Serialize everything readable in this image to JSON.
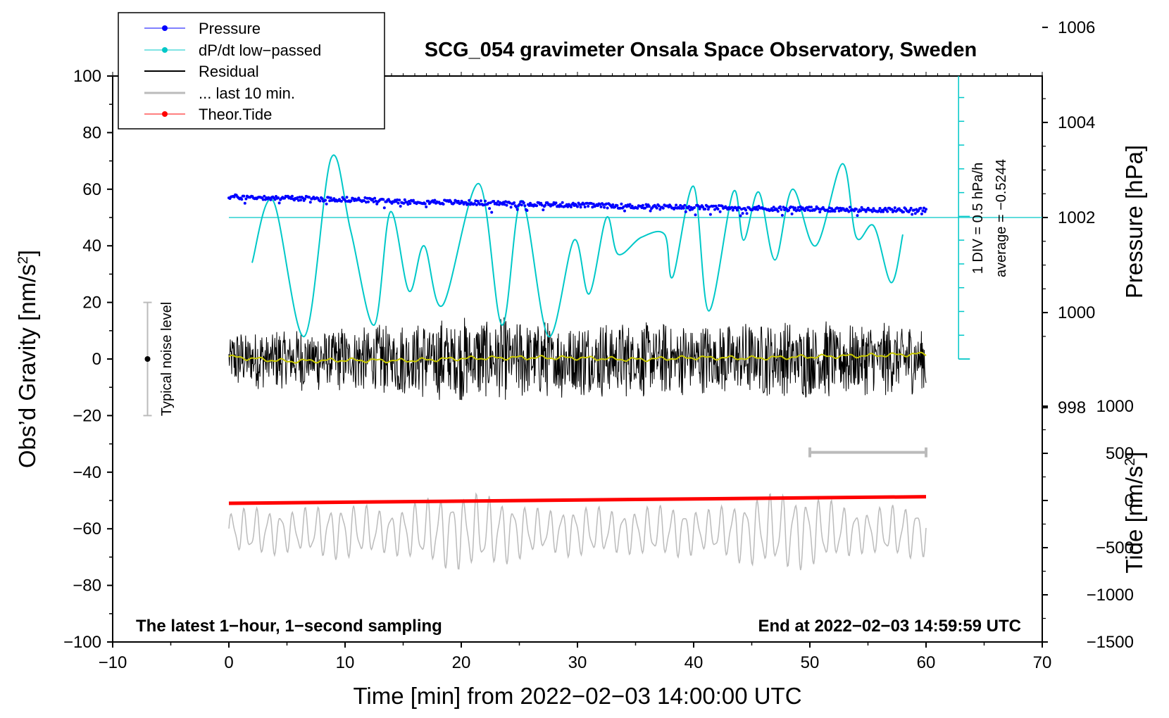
{
  "chart_data": {
    "type": "line",
    "title": "SCG_054 gravimeter Onsala Space Observatory, Sweden",
    "xlabel": "Time [min] from 2022−02−03 14:00:00 UTC",
    "ylabel_left": "Obs’d Gravity [nm/s²]",
    "ylabel_left_main": "Obs’d Gravity [nm/s",
    "ylabel_left_sup": "2",
    "ylabel_left_end": "]",
    "ylabel_right_pressure": "Pressure [hPa]",
    "ylabel_right_tide": "Tide [nm/s²]",
    "ylabel_right_tide_main": "Tide [nm/s",
    "ylabel_right_tide_sup": "2",
    "ylabel_right_tide_end": "]",
    "xlim": [
      -10,
      70
    ],
    "ylim_left": [
      -100,
      100
    ],
    "x_ticks": [
      -10,
      0,
      10,
      20,
      30,
      40,
      50,
      60,
      70
    ],
    "x_tick_labels": [
      "−10",
      "0",
      "10",
      "20",
      "30",
      "40",
      "50",
      "60",
      "70"
    ],
    "y_ticks_left": [
      -100,
      -80,
      -60,
      -40,
      -20,
      0,
      20,
      40,
      60,
      80,
      100
    ],
    "y_tick_labels_left": [
      "−100",
      "−80",
      "−60",
      "−40",
      "−20",
      "0",
      "20",
      "40",
      "60",
      "80",
      "100"
    ],
    "pressure_axis": {
      "ticks": [
        998,
        1000,
        1002,
        1004,
        1006
      ],
      "tick_labels": [
        "998",
        "1000",
        "1002",
        "1004",
        "1006"
      ],
      "map_gravity_at_1002": 50,
      "nm_per_hpa": 16.8
    },
    "tide_axis": {
      "ticks": [
        -1500,
        -1000,
        -500,
        0,
        500,
        1000
      ],
      "tick_labels": [
        "−1500",
        "−1000",
        "−500",
        "0",
        "500",
        "1000"
      ],
      "map_gravity_at_0": -50,
      "nm_per_unit": 0.033333
    },
    "legend": [
      {
        "label": "Pressure",
        "color": "#0000ff",
        "marker": "dot"
      },
      {
        "label": "dP/dt low−passed",
        "color": "#00c8c8",
        "marker": "dot"
      },
      {
        "label": "Residual",
        "color": "#000000",
        "marker": "none"
      },
      {
        "label": "... last 10 min.",
        "color": "#bbbbbb",
        "marker": "none"
      },
      {
        "label": "Theor.Tide",
        "color": "#ff0000",
        "marker": "dot"
      }
    ],
    "series": [
      {
        "name": "Pressure",
        "unit": "gravity-axis units",
        "color": "#0000ff",
        "x": [
          0,
          5,
          10,
          15,
          20,
          25,
          30,
          35,
          40,
          45,
          50,
          55,
          60
        ],
        "y": [
          57.3,
          56.9,
          56.4,
          55.8,
          55.3,
          54.9,
          54.4,
          53.9,
          53.6,
          53.3,
          53.0,
          52.8,
          52.6
        ]
      },
      {
        "name": "dP/dt low−passed",
        "unit": "gravity-axis units",
        "color": "#00c8c8",
        "x": [
          2,
          3.8,
          6.5,
          8.8,
          10.5,
          12.5,
          13.9,
          15.5,
          16.8,
          18.4,
          21.5,
          23.5,
          25.2,
          27.5,
          29.7,
          31,
          32.5,
          33.5,
          35.5,
          37.5,
          38.2,
          40,
          41.3,
          43.4,
          44.3,
          45.6,
          47,
          48.5,
          50.5,
          52.8,
          54,
          55.5,
          57,
          58
        ],
        "y": [
          34,
          56,
          8,
          71,
          45,
          12,
          52,
          24,
          40,
          19,
          62,
          12,
          56,
          8,
          42,
          23,
          50,
          37,
          43,
          44,
          29,
          61,
          17,
          59,
          42,
          59,
          35,
          60,
          40,
          69,
          43,
          47,
          27,
          44
        ]
      },
      {
        "name": "Residual",
        "unit": "nm/s²",
        "color": "#000000",
        "x_range": [
          0,
          60
        ],
        "amplitude_envelope": [
          {
            "x": 0,
            "amp": 9
          },
          {
            "x": 10,
            "amp": 10
          },
          {
            "x": 20,
            "amp": 13
          },
          {
            "x": 30,
            "amp": 12
          },
          {
            "x": 40,
            "amp": 11
          },
          {
            "x": 50,
            "amp": 12
          },
          {
            "x": 60,
            "amp": 11
          }
        ]
      },
      {
        "name": "Residual low-passed",
        "unit": "nm/s²",
        "color": "#c8c800",
        "x": [
          0,
          5,
          10,
          15,
          20,
          25,
          30,
          35,
          40,
          45,
          50,
          55,
          60
        ],
        "y": [
          0.8,
          -0.8,
          -0.4,
          -0.6,
          0.2,
          0.5,
          0.4,
          -0.2,
          0.5,
          0.3,
          0.8,
          1.2,
          1.8
        ]
      },
      {
        "name": "... last 10 min.",
        "unit": "gravity-axis units",
        "color": "#bbbbbb",
        "x_range": [
          0,
          60
        ],
        "y_center": -61,
        "y_low": -73,
        "y_high": -45
      },
      {
        "name": "Theor.Tide",
        "unit": "nm/s² (tide axis)",
        "color": "#ff0000",
        "x": [
          0,
          60
        ],
        "y": [
          -30,
          40
        ]
      }
    ],
    "noise_bar": {
      "x": -7,
      "y": 0,
      "low": -20,
      "high": 20,
      "label": "Typical noise level"
    },
    "last10_bracket": {
      "x_start": 50,
      "x_end": 60,
      "y": -33
    },
    "ddt_axis": {
      "label_div": "1 DIV = 0.5 hPa/h",
      "label_avg": "average = −0.5244",
      "baseline_y": 50
    },
    "annotations": {
      "bottom_left": "The latest 1−hour, 1−second sampling",
      "bottom_right": "End at 2022−02−03 14:59:59 UTC"
    }
  }
}
